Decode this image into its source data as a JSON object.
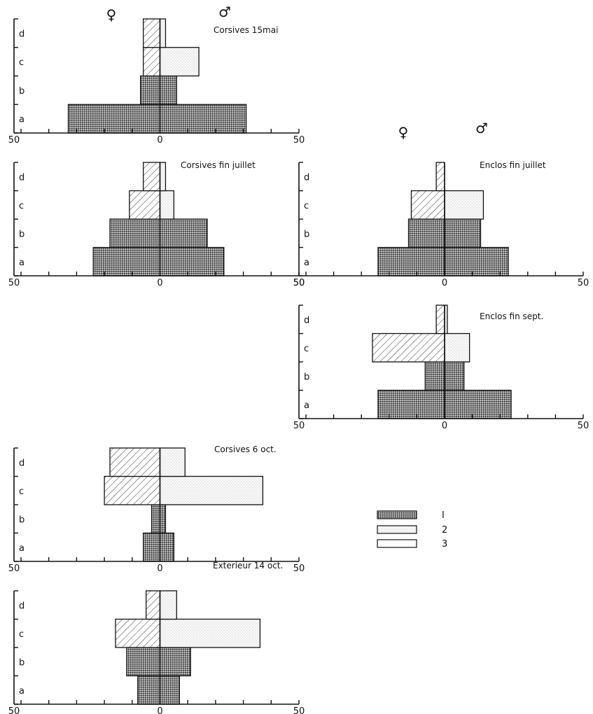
{
  "figure": {
    "female_symbol": "♀",
    "male_symbol": "♂",
    "legend": [
      {
        "key": "1",
        "label": "I",
        "pattern": "stipple"
      },
      {
        "key": "2",
        "label": "2",
        "pattern": "hatch"
      },
      {
        "key": "3",
        "label": "3",
        "pattern": "open"
      }
    ]
  },
  "chart_data": [
    {
      "type": "bar",
      "title": "Corsives 15mai",
      "categories": [
        "a",
        "b",
        "c",
        "d"
      ],
      "xlim": [
        -50,
        50
      ],
      "x_tick_labels": [
        "50",
        "0",
        "50"
      ],
      "female": [
        {
          "category": "a",
          "value": 33,
          "class": "1"
        },
        {
          "category": "b",
          "value": 7,
          "class": "1"
        },
        {
          "category": "c",
          "value": 6,
          "class": "2"
        },
        {
          "category": "d",
          "value": 6,
          "class": "2"
        }
      ],
      "male": [
        {
          "category": "a",
          "value": 31,
          "class": "1"
        },
        {
          "category": "b",
          "value": 6,
          "class": "1"
        },
        {
          "category": "c",
          "value": 14,
          "class": "3"
        },
        {
          "category": "d",
          "value": 2,
          "class": "3"
        }
      ]
    },
    {
      "type": "bar",
      "title": "Corsives fin juillet",
      "categories": [
        "a",
        "b",
        "c",
        "d"
      ],
      "xlim": [
        -50,
        50
      ],
      "x_tick_labels": [
        "50",
        "0",
        "50"
      ],
      "female": [
        {
          "category": "a",
          "value": 24,
          "class": "1"
        },
        {
          "category": "b",
          "value": 18,
          "class": "1"
        },
        {
          "category": "c",
          "value": 11,
          "class": "2"
        },
        {
          "category": "d",
          "value": 6,
          "class": "2"
        }
      ],
      "male": [
        {
          "category": "a",
          "value": 23,
          "class": "1"
        },
        {
          "category": "b",
          "value": 17,
          "class": "1"
        },
        {
          "category": "c",
          "value": 5,
          "class": "3"
        },
        {
          "category": "d",
          "value": 2,
          "class": "3"
        }
      ]
    },
    {
      "type": "bar",
      "title": "Enclos fin juillet",
      "categories": [
        "a",
        "b",
        "c",
        "d"
      ],
      "xlim": [
        -50,
        50
      ],
      "x_tick_labels": [
        "50",
        "0",
        "50"
      ],
      "female": [
        {
          "category": "a",
          "value": 24,
          "class": "1"
        },
        {
          "category": "b",
          "value": 13,
          "class": "1"
        },
        {
          "category": "c",
          "value": 12,
          "class": "2"
        },
        {
          "category": "d",
          "value": 3,
          "class": "2"
        }
      ],
      "male": [
        {
          "category": "a",
          "value": 23,
          "class": "1"
        },
        {
          "category": "b",
          "value": 13,
          "class": "1"
        },
        {
          "category": "c",
          "value": 14,
          "class": "3"
        },
        {
          "category": "d",
          "value": 0,
          "class": "3"
        }
      ]
    },
    {
      "type": "bar",
      "title": "Enclos fin sept.",
      "categories": [
        "a",
        "b",
        "c",
        "d"
      ],
      "xlim": [
        -50,
        50
      ],
      "x_tick_labels": [
        "50",
        "0",
        "50"
      ],
      "female": [
        {
          "category": "a",
          "value": 24,
          "class": "1"
        },
        {
          "category": "b",
          "value": 7,
          "class": "1"
        },
        {
          "category": "c",
          "value": 26,
          "class": "2"
        },
        {
          "category": "d",
          "value": 3,
          "class": "2"
        }
      ],
      "male": [
        {
          "category": "a",
          "value": 24,
          "class": "1"
        },
        {
          "category": "b",
          "value": 7,
          "class": "1"
        },
        {
          "category": "c",
          "value": 9,
          "class": "3"
        },
        {
          "category": "d",
          "value": 1,
          "class": "3"
        }
      ]
    },
    {
      "type": "bar",
      "title": "Corsives 6 oct.",
      "categories": [
        "a",
        "b",
        "c",
        "d"
      ],
      "xlim": [
        -50,
        50
      ],
      "x_tick_labels": [
        "50",
        "0",
        "50"
      ],
      "female": [
        {
          "category": "a",
          "value": 6,
          "class": "1"
        },
        {
          "category": "b",
          "value": 3,
          "class": "1"
        },
        {
          "category": "c",
          "value": 20,
          "class": "2"
        },
        {
          "category": "d",
          "value": 18,
          "class": "2"
        }
      ],
      "male": [
        {
          "category": "a",
          "value": 5,
          "class": "1"
        },
        {
          "category": "b",
          "value": 2,
          "class": "1"
        },
        {
          "category": "c",
          "value": 37,
          "class": "3"
        },
        {
          "category": "d",
          "value": 9,
          "class": "3"
        }
      ]
    },
    {
      "type": "bar",
      "title": "Exterieur 14 oct.",
      "categories": [
        "a",
        "b",
        "c",
        "d"
      ],
      "xlim": [
        -50,
        50
      ],
      "x_tick_labels": [
        "50",
        "0",
        "50"
      ],
      "female": [
        {
          "category": "a",
          "value": 8,
          "class": "1"
        },
        {
          "category": "b",
          "value": 12,
          "class": "1"
        },
        {
          "category": "c",
          "value": 16,
          "class": "2"
        },
        {
          "category": "d",
          "value": 5,
          "class": "2"
        }
      ],
      "male": [
        {
          "category": "a",
          "value": 7,
          "class": "1"
        },
        {
          "category": "b",
          "value": 11,
          "class": "1"
        },
        {
          "category": "c",
          "value": 36,
          "class": "3"
        },
        {
          "category": "d",
          "value": 6,
          "class": "3"
        }
      ]
    }
  ]
}
